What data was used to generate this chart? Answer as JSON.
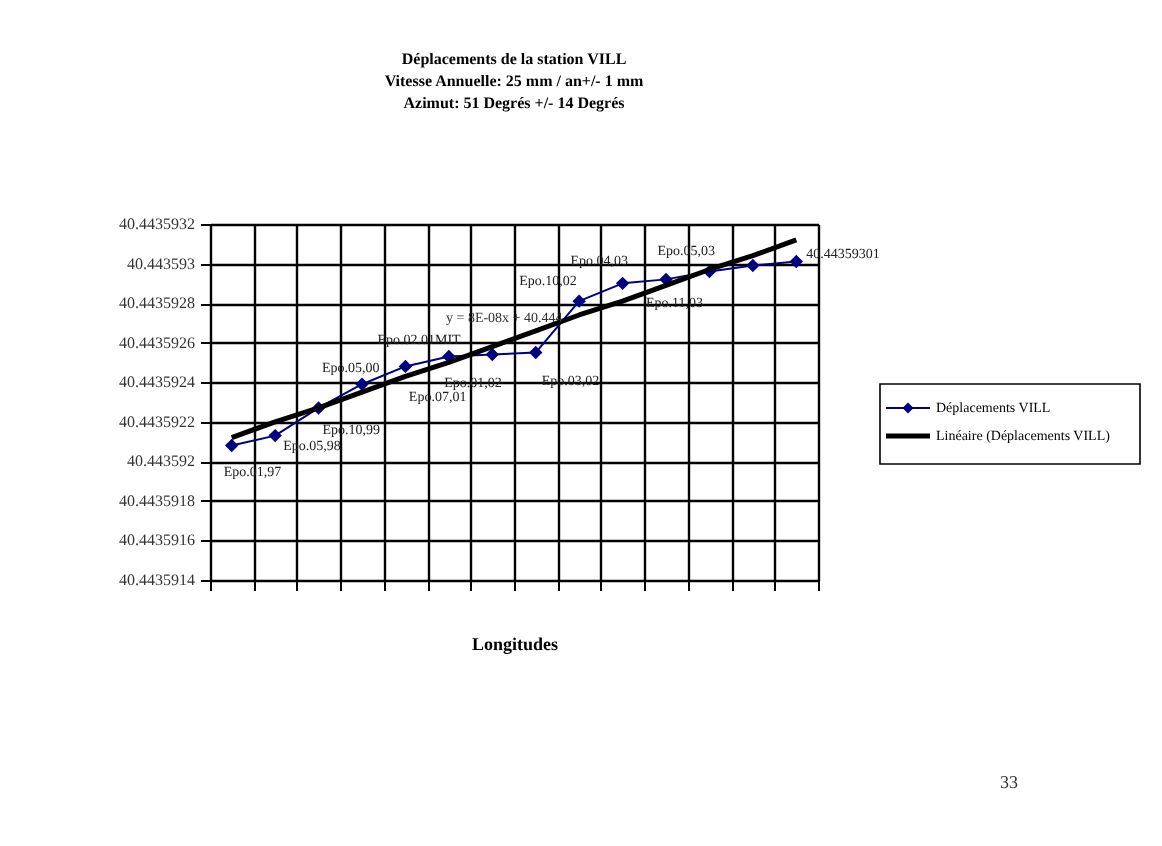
{
  "chart_data": {
    "type": "line",
    "title": "Déplacements de la station VILL",
    "subtitle": "Vitesse Annuelle: 25 mm / an+/- 1 mm\nAzimut: 51 Degrés +/- 14 Degrés",
    "xlabel": "Longitudes",
    "categories": [
      null,
      null,
      null,
      null,
      null,
      null,
      null,
      null,
      null,
      null,
      null,
      null,
      null,
      null
    ],
    "series": [
      {
        "name": "Déplacements VILL",
        "color": "#000080",
        "marker": "diamond",
        "values": [
          40.44359208,
          40.44359213,
          40.44359227,
          40.44359239,
          40.44359248,
          40.44359253,
          40.44359254,
          40.44359255,
          40.44359281,
          40.4435929,
          40.44359292,
          40.44359296,
          40.44359299,
          40.44359301
        ],
        "value_labels": [
          "Epo.01,97",
          "Epo.05,98",
          "Epo.10,99",
          "Epo.05,00",
          "Epo.02.01MIT",
          "Epo.07,01",
          "Epo.01,02",
          "Epo.03,02",
          "Epo.10,02",
          "Epo.04,03",
          "Epo.11,03",
          "Epo.05,03",
          null,
          "40.44359301"
        ]
      },
      {
        "name": "Linéaire (Déplacements VILL)",
        "color": "#000000",
        "marker": "none",
        "values": [
          40.44359212,
          40.4435922,
          40.44359227,
          40.44359235,
          40.44359243,
          40.4435925,
          40.44359258,
          40.44359266,
          40.44359274,
          40.44359281,
          40.44359289,
          40.44359297,
          40.44359304,
          40.44359312
        ]
      }
    ],
    "ylim": [
      40.4435914,
      40.4435932
    ],
    "yticks": [
      40.4435914,
      40.4435916,
      40.4435918,
      {
        "value": 40.443592,
        "label": "40.443592"
      },
      40.4435922,
      40.4435924,
      40.4435926,
      40.4435928,
      {
        "value": 40.443593,
        "label": "40.443593"
      },
      40.4435932
    ],
    "grid": true,
    "legend": "right",
    "tick_labels": "y",
    "annotations": [
      "y = 8E-08x + 40.444",
      "33"
    ]
  }
}
